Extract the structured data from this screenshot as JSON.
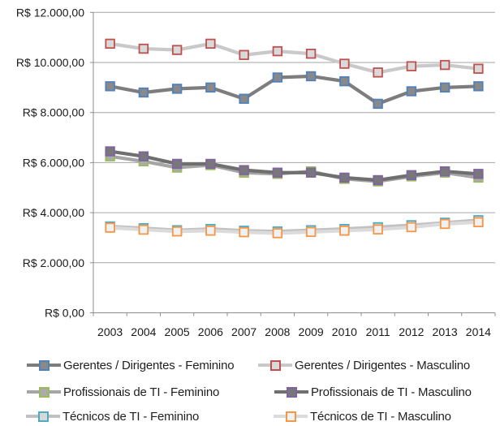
{
  "chart_data": {
    "type": "line",
    "title": "",
    "categories": [
      "2003",
      "2004",
      "2005",
      "2006",
      "2007",
      "2008",
      "2009",
      "2010",
      "2011",
      "2012",
      "2013",
      "2014"
    ],
    "y_axis": {
      "min": 0,
      "max": 12000,
      "tick_interval": 2000,
      "ticks": [
        {
          "label": "R$ 12.000,00",
          "value": 12000
        },
        {
          "label": "R$ 10.000,00",
          "value": 10000
        },
        {
          "label": "R$ 8.000,00",
          "value": 8000
        },
        {
          "label": "R$ 6.000,00",
          "value": 6000
        },
        {
          "label": "R$ 4.000,00",
          "value": 4000
        },
        {
          "label": "R$ 2.000,00",
          "value": 2000
        },
        {
          "label": "R$ 0,00",
          "value": 0
        }
      ]
    },
    "grid": true,
    "legend_position": "bottom",
    "series": [
      {
        "name": "Gerentes / Dirigentes - Feminino",
        "marker_color": "#4F81BD",
        "line_color": "#7D7D7D",
        "fill_color": "#898989",
        "values": [
          9050,
          8800,
          8950,
          9000,
          8550,
          9400,
          9450,
          9250,
          8350,
          8850,
          9000,
          9050
        ]
      },
      {
        "name": "Gerentes / Dirigentes - Masculino",
        "marker_color": "#C0504D",
        "line_color": "#C9C9C9",
        "fill_color": "#D9D9D9",
        "values": [
          10750,
          10550,
          10500,
          10750,
          10300,
          10450,
          10350,
          9950,
          9600,
          9850,
          9900,
          9750
        ]
      },
      {
        "name": "Profissionais de TI - Feminino",
        "marker_color": "#9BBB59",
        "line_color": "#A5A5A5",
        "fill_color": "#ABABAB",
        "values": [
          6250,
          6050,
          5800,
          5900,
          5600,
          5550,
          5650,
          5350,
          5250,
          5450,
          5600,
          5400
        ]
      },
      {
        "name": "Profissionais de TI - Masculino",
        "marker_color": "#8064A2",
        "line_color": "#6F6F6F",
        "fill_color": "#787878",
        "values": [
          6450,
          6250,
          5950,
          5950,
          5700,
          5600,
          5600,
          5400,
          5300,
          5500,
          5650,
          5550
        ]
      },
      {
        "name": "Técnicos de TI - Feminino",
        "marker_color": "#4BACC6",
        "line_color": "#C1C1C1",
        "fill_color": "#D8D8D8",
        "values": [
          3450,
          3380,
          3300,
          3350,
          3280,
          3250,
          3300,
          3350,
          3420,
          3500,
          3600,
          3700
        ]
      },
      {
        "name": "Técnicos de TI - Masculino",
        "marker_color": "#F79646",
        "line_color": "#DBDBDB",
        "fill_color": "#F1F1F1",
        "values": [
          3400,
          3320,
          3250,
          3280,
          3220,
          3180,
          3230,
          3280,
          3330,
          3420,
          3550,
          3620
        ]
      }
    ],
    "axis_text_color": "#1a1a1a",
    "gridline_color": "#A6A6A6",
    "axis_line_color": "#8C8C8C"
  }
}
